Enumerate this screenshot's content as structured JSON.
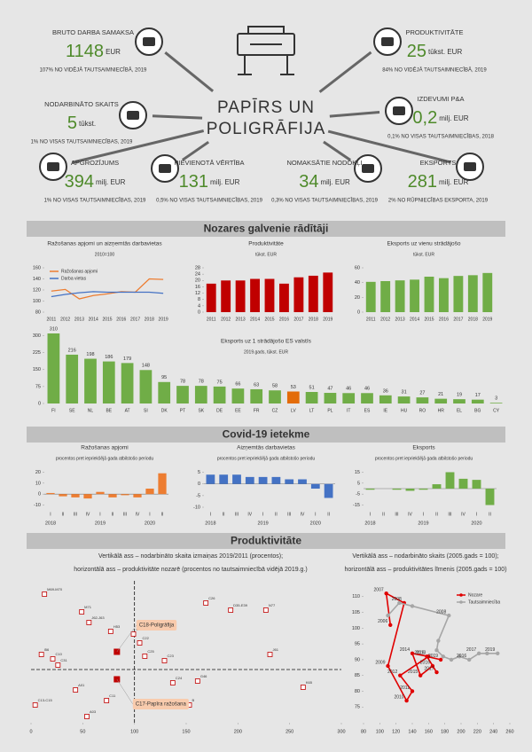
{
  "header": {
    "title": [
      "PAPĪRS UN",
      "POLIGRĀFIJA"
    ]
  },
  "kpis": [
    {
      "title": "BRUTO DARBA SAMAKSA",
      "value": "1148",
      "unit": "EUR",
      "note": "107% NO VIDĒJĀ TAUTSAIMNIECĪBĀ, 2019"
    },
    {
      "title": "NODARBINĀTO SKAITS",
      "value": "5",
      "unit": "tūkst.",
      "note": "1% NO VISAS TAUTSAIMNIECĪBAS, 2019"
    },
    {
      "title": "APGROZĪJUMS",
      "value": "394",
      "unit": "milj. EUR",
      "note": "1% NO VISAS TAUTSAIMNIECĪBAS, 2019"
    },
    {
      "title": "PIEVIENOTĀ VĒRTĪBA",
      "value": "131",
      "unit": "milj. EUR",
      "note": "0,5% NO VISAS TAUTSAIMNIECĪBAS, 2019"
    },
    {
      "title": "NOMAKSĀTIE NODOKĻI",
      "value": "34",
      "unit": "milj. EUR",
      "note": "0,3% NO VISAS TAUTSAIMNIECĪBAS, 2019"
    },
    {
      "title": "EKSPORTS",
      "value": "281",
      "unit": "milj. EUR",
      "note": "2% NO RŪPNIECĪBAS EKSPORTA, 2019"
    },
    {
      "title": "PRODUKTIVITĀTE",
      "value": "25",
      "unit": "tūkst. EUR",
      "note": "84% NO VIDĒJĀ TAUTSAIMNIECĪBĀ, 2019"
    },
    {
      "title": "IZDEVUMI P&A",
      "value": "0,2",
      "unit": "milj. EUR",
      "note": "0,1% NO VISAS TAUTSAIMNIECĪBAS, 2018"
    }
  ],
  "sections": [
    "Nozares galvenie rādītāji",
    "Covid-19 ietekme",
    "Produktivitāte"
  ],
  "chart_data": [
    {
      "type": "line",
      "title": "Ražošanas apjomi un aizņemtās darbavietas",
      "subtitle": "2010=100",
      "categories": [
        "2011",
        "2012",
        "2013",
        "2014",
        "2015",
        "2016",
        "2017",
        "2018",
        "2019"
      ],
      "series": [
        {
          "name": "Ražošanas apjomi",
          "color": "#ed7d31",
          "values": [
            118,
            121,
            104,
            110,
            113,
            117,
            116,
            140,
            139
          ]
        },
        {
          "name": "Darba vietas",
          "color": "#4472c4",
          "values": [
            108,
            112,
            115,
            117,
            116,
            116,
            116,
            116,
            114
          ]
        }
      ],
      "ylim": [
        80,
        160
      ],
      "yticks": [
        80,
        100,
        120,
        140,
        160
      ],
      "legend": "upper left"
    },
    {
      "type": "bar",
      "title": "Produktivitāte",
      "subtitle": "tūkst. EUR",
      "categories": [
        "2011",
        "2012",
        "2013",
        "2014",
        "2015",
        "2016",
        "2017",
        "2018",
        "2019"
      ],
      "values": [
        18,
        20,
        20,
        21,
        21,
        18,
        22,
        23,
        25
      ],
      "color": "#c00000",
      "ylim": [
        0,
        28
      ],
      "yticks": [
        0,
        4,
        8,
        12,
        16,
        20,
        24,
        28
      ]
    },
    {
      "type": "bar",
      "title": "Eksports uz vienu strādājošo",
      "subtitle": "tūkst. EUR",
      "categories": [
        "2011",
        "2012",
        "2013",
        "2014",
        "2015",
        "2016",
        "2017",
        "2018",
        "2019"
      ],
      "values": [
        41,
        42,
        43,
        44,
        48,
        46,
        49,
        50,
        53
      ],
      "color": "#70ad47",
      "ylim": [
        0,
        60
      ],
      "yticks": [
        0,
        20,
        40,
        60
      ]
    },
    {
      "type": "bar",
      "title": "Eksports uz 1 strādājošo ES valstīs",
      "subtitle": "2019.gads, tūkst. EUR",
      "categories": [
        "FI",
        "SE",
        "NL",
        "BE",
        "AT",
        "SI",
        "DK",
        "PT",
        "SK",
        "DE",
        "EE",
        "FR",
        "CZ",
        "LV",
        "LT",
        "PL",
        "IT",
        "ES",
        "IE",
        "HU",
        "RO",
        "HR",
        "EL",
        "BG",
        "CY"
      ],
      "values": [
        310,
        216,
        198,
        186,
        179,
        148,
        95,
        78,
        78,
        75,
        66,
        63,
        58,
        53,
        51,
        47,
        46,
        46,
        36,
        31,
        27,
        21,
        19,
        17,
        3
      ],
      "color": "#70ad47",
      "highlight": "LV",
      "highlight_color": "#e36c09",
      "data_labels": true,
      "ylim": [
        0,
        310
      ],
      "yticks": [
        0,
        75,
        150,
        225,
        300
      ]
    },
    {
      "type": "bar",
      "title": "Ražošanas apjomi",
      "subtitle": "procentos pret iepriekšējā gada atbilstošo periodu",
      "categories": [
        "I",
        "II",
        "III",
        "IV",
        "I",
        "II",
        "III",
        "IV",
        "I",
        "II"
      ],
      "groups": [
        "2018",
        "2019",
        "2020"
      ],
      "values": [
        1,
        -2,
        -3,
        -4,
        2,
        -3,
        -1,
        -3,
        5,
        19
      ],
      "color": "#ed7d31",
      "ylim": [
        -12,
        22
      ],
      "yticks": [
        -10,
        0,
        10,
        20
      ]
    },
    {
      "type": "bar",
      "title": "Aizņemtās darbavietas",
      "subtitle": "procentos pret iepriekšējā gada atbilstošo periodu",
      "categories": [
        "I",
        "II",
        "III",
        "IV",
        "I",
        "II",
        "III",
        "IV",
        "I",
        "II"
      ],
      "groups": [
        "2018",
        "2019",
        "2020"
      ],
      "values": [
        4,
        4,
        4,
        3,
        3,
        3,
        2,
        2,
        -2,
        -6
      ],
      "color": "#4472c4",
      "ylim": [
        -10,
        6
      ],
      "yticks": [
        -10,
        -5,
        0,
        5
      ]
    },
    {
      "type": "bar",
      "title": "Eksports",
      "subtitle": "procentos pret iepriekšējā gada atbilstošo periodu",
      "categories": [
        "I",
        "II",
        "III",
        "IV",
        "I",
        "II",
        "III",
        "IV",
        "I",
        "II"
      ],
      "groups": [
        "2018",
        "2019",
        "2020"
      ],
      "values": [
        -1,
        0,
        -1,
        -2,
        -1,
        4,
        15,
        9,
        8,
        -15
      ],
      "color": "#70ad47",
      "ylim": [
        -17,
        17
      ],
      "yticks": [
        -15,
        -5,
        5,
        15
      ]
    },
    {
      "type": "scatter",
      "title": "Vertikālā ass – nodarbināto skaita izmaiņas 2019/2011 (procentos);",
      "subtitle": "horizontālā ass – produktivitāte nozarē (procentos no tautsaimniecībā vidējā 2019.g.)",
      "x": [
        13,
        49,
        56,
        77,
        99,
        105,
        110,
        129,
        169,
        193,
        227,
        231,
        263,
        10,
        26,
        43,
        4,
        54,
        73,
        137,
        153,
        161,
        21
      ],
      "y": [
        85,
        65,
        53,
        43,
        40,
        30,
        15,
        10,
        75,
        67,
        67,
        17,
        -20,
        17,
        5,
        -23,
        -40,
        -53,
        -35,
        -15,
        -40,
        -13,
        12
      ],
      "labels": [
        "M69-M70",
        "M71",
        "J62-J63",
        "H53",
        "C16",
        "C22",
        "C25",
        "C23",
        "C26",
        "D35-E39",
        "N77",
        "J61",
        "K65",
        "I56",
        "C31",
        "A01",
        "C13-C15",
        "A03",
        "C11",
        "C24",
        "B",
        "G46",
        "C10"
      ],
      "color": "#c00000",
      "highlighted": {
        "x": [
          83,
          83
        ],
        "y": [
          20,
          -11
        ],
        "labels": [
          "C18-Poligrāfija",
          "C17-Papīra ražošana"
        ]
      },
      "highlight_color": "#f8cbad",
      "xlim": [
        0,
        300
      ],
      "xticks": [
        0,
        50,
        100,
        150,
        200,
        250,
        300
      ],
      "ylim": [
        -60,
        100
      ],
      "crosshair": [
        100,
        0
      ]
    },
    {
      "type": "line",
      "title": "Vertikālā ass – nodarbināto skaits (2005.gads = 100);",
      "subtitle": "horizontālā ass – produktivitātes līmenis (2005.gads = 100)",
      "series": [
        {
          "name": "Nozare",
          "color": "#e00000",
          "x": [
            113,
            108,
            130,
            110,
            133,
            140,
            125,
            160,
            140,
            150,
            165,
            170,
            158,
            175
          ],
          "values": [
            101,
            111,
            108,
            88,
            77,
            80,
            85,
            91,
            92,
            85,
            88,
            86,
            91,
            90
          ],
          "point_labels": [
            "2006",
            "2007",
            "2008",
            "2009",
            "2010",
            "2011",
            "2012",
            "2013",
            "2014",
            "2015",
            "2016",
            "2017",
            "2018",
            "2019"
          ]
        },
        {
          "name": "Tautsaimniecība",
          "color": "#a6a6a6",
          "x": [
            110,
            124,
            140,
            185,
            172,
            170,
            178,
            188,
            198,
            210,
            222,
            232,
            245
          ],
          "values": [
            104,
            108,
            107,
            104,
            96,
            93,
            91,
            90,
            91,
            90,
            92,
            92,
            92
          ],
          "point_labels": [
            null,
            null,
            null,
            "2008",
            null,
            null,
            null,
            null,
            null,
            "2016",
            "2017",
            null,
            "2019"
          ]
        }
      ],
      "xlim": [
        80,
        260
      ],
      "xticks": [
        80,
        100,
        120,
        140,
        160,
        180,
        200,
        220,
        240,
        260
      ],
      "ylim": [
        70,
        115
      ],
      "yticks": [
        75,
        80,
        85,
        90,
        95,
        100,
        105,
        110
      ],
      "legend": "upper right"
    }
  ]
}
